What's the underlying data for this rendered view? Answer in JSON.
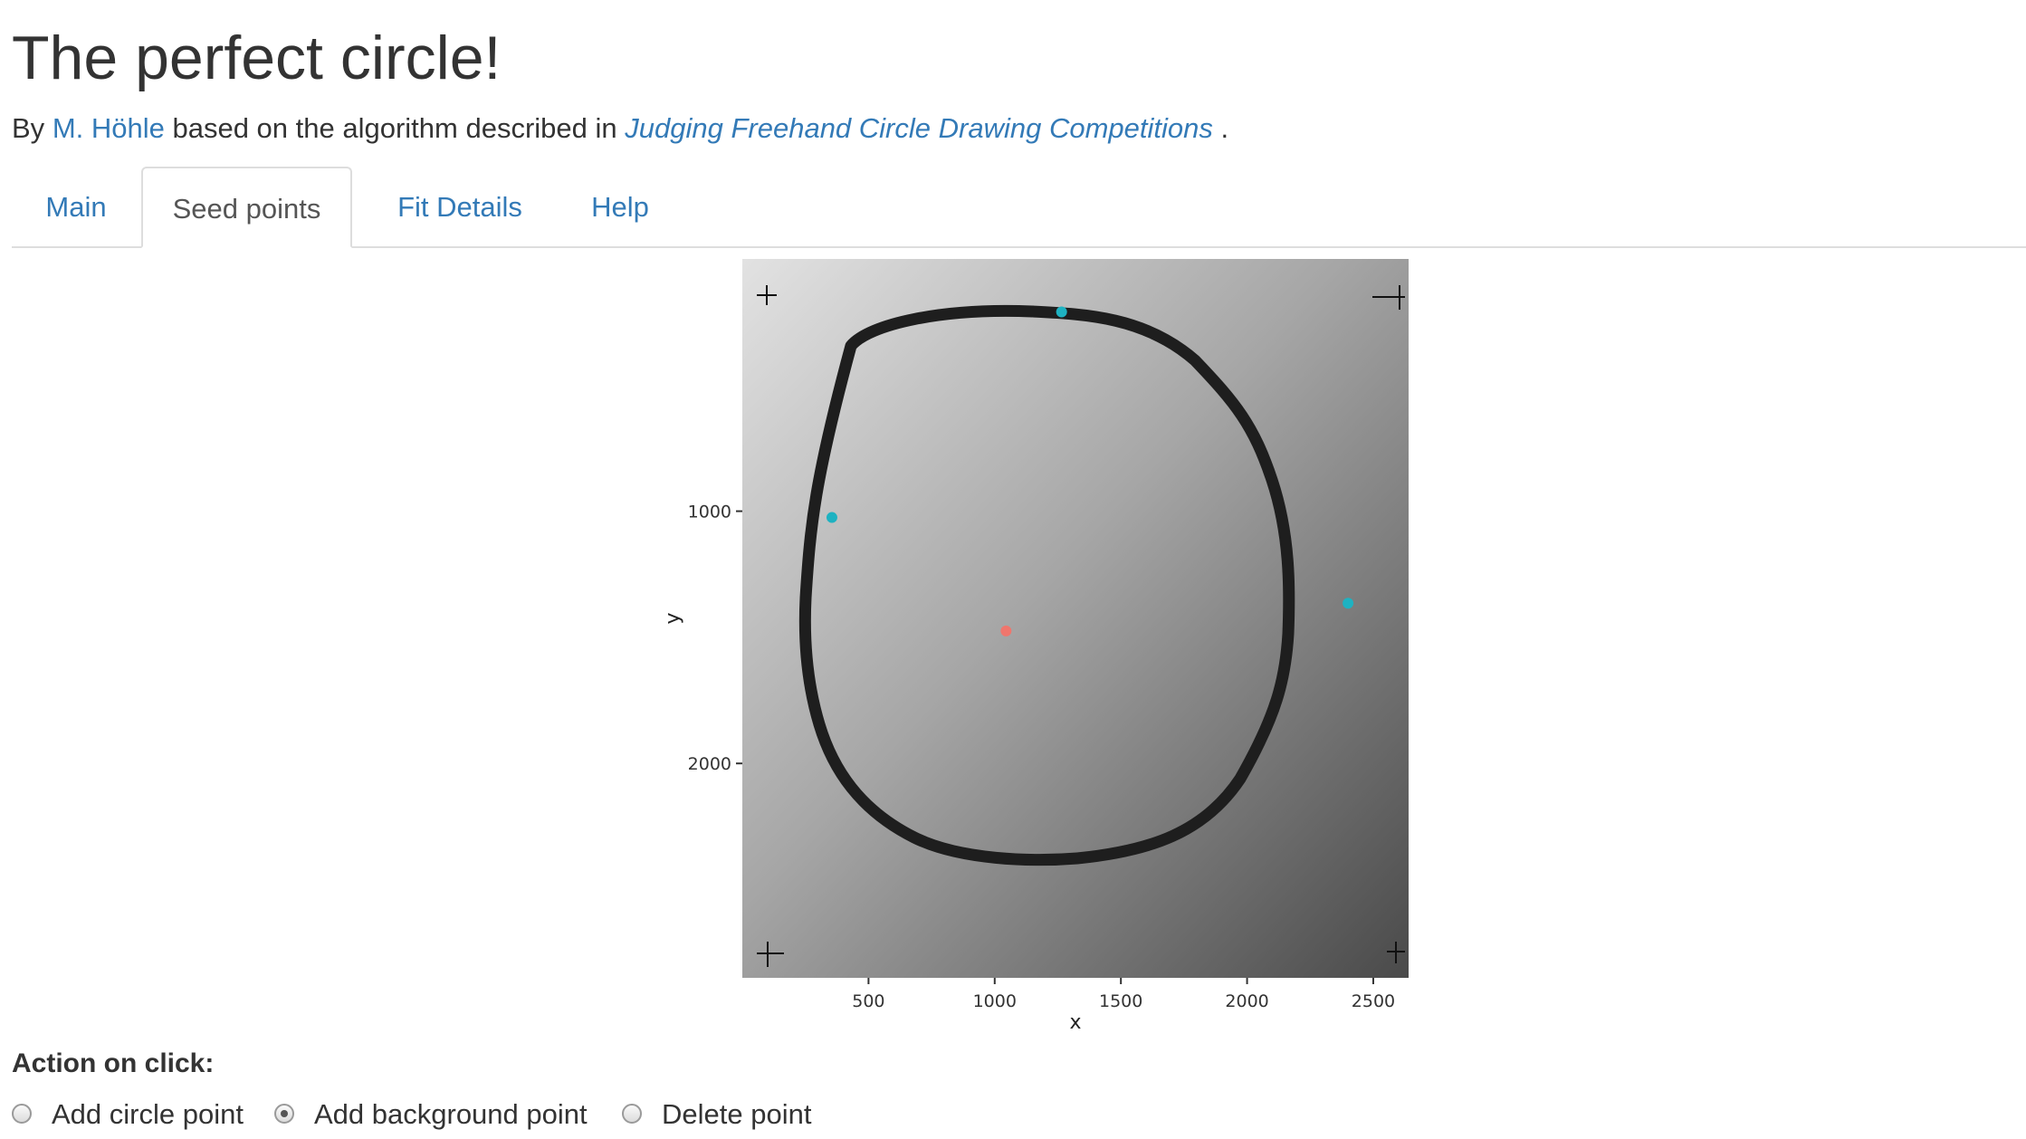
{
  "header": {
    "title": "The perfect circle!",
    "by_prefix": "By",
    "author": "M. Höhle",
    "based_text": "based on the algorithm described in",
    "paper_title": "Judging Freehand Circle Drawing Competitions",
    "end_punct": "."
  },
  "tabs": [
    {
      "label": "Main",
      "active": false
    },
    {
      "label": "Seed points",
      "active": true
    },
    {
      "label": "Fit Details",
      "active": false
    },
    {
      "label": "Help",
      "active": false
    }
  ],
  "chart_data": {
    "type": "scatter",
    "xlabel": "x",
    "ylabel": "y",
    "xlim": [
      0,
      2640
    ],
    "ylim": [
      2850,
      0
    ],
    "x_ticks": [
      500,
      1000,
      1500,
      2000,
      2500
    ],
    "y_ticks": [
      1000,
      2000
    ],
    "background": "photo of a hand-drawn circle on paper (grayscale)",
    "series": [
      {
        "role": "circle points",
        "color": "#1eb2c1",
        "points": [
          [
            1265,
            210
          ],
          [
            355,
            1025
          ],
          [
            2400,
            1365
          ]
        ]
      },
      {
        "role": "background points",
        "color": "#f0766d",
        "points": [
          [
            1045,
            1475
          ]
        ]
      }
    ]
  },
  "controls": {
    "action_label": "Action on click:",
    "options": [
      {
        "label": "Add circle point",
        "checked": false
      },
      {
        "label": "Add background point",
        "checked": true
      },
      {
        "label": "Delete point",
        "checked": false
      }
    ]
  },
  "colors": {
    "link": "#337ab7",
    "text": "#333333",
    "circle_point": "#1eb2c1",
    "background_point": "#f0766d"
  }
}
